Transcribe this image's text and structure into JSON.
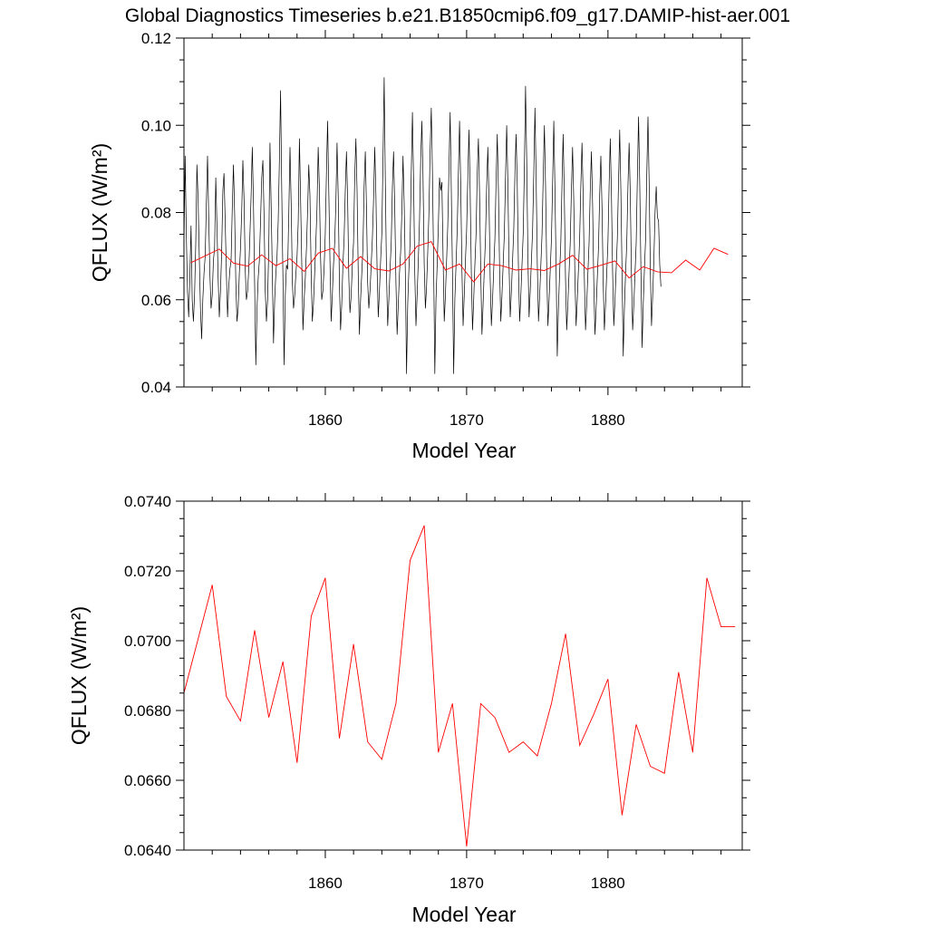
{
  "title": "Global Diagnostics Timeseries b.e21.B1850cmip6.f09_g17.DAMIP-hist-aer.001",
  "colors": {
    "monthly_series": "#000000",
    "annual_series": "#ff0000"
  },
  "chart_data": [
    {
      "type": "line",
      "xlabel": "Model Year",
      "ylabel": "QFLUX (W/m²)",
      "xlim": [
        1850.0,
        1889.5
      ],
      "ylim": [
        0.04,
        0.12
      ],
      "xticks": [
        1860,
        1870,
        1880
      ],
      "xtick_labels": [
        "1860",
        "1870",
        "1880"
      ],
      "yticks": [
        0.04,
        0.06,
        0.08,
        0.1,
        0.12
      ],
      "ytick_labels": [
        "0.04",
        "0.06",
        "0.08",
        "0.10",
        "0.12"
      ],
      "grid": false,
      "series": [
        {
          "style": "monthly",
          "color": "#000000",
          "x_start": 1850.0,
          "x_step": 0.08333,
          "values": [
            0.072,
            0.093,
            0.075,
            0.062,
            0.056,
            0.065,
            0.077,
            0.06,
            0.055,
            0.061,
            0.073,
            0.091,
            0.083,
            0.07,
            0.058,
            0.051,
            0.06,
            0.066,
            0.07,
            0.082,
            0.093,
            0.079,
            0.066,
            0.058,
            0.061,
            0.069,
            0.072,
            0.088,
            0.077,
            0.065,
            0.056,
            0.062,
            0.071,
            0.085,
            0.089,
            0.078,
            0.066,
            0.056,
            0.063,
            0.067,
            0.069,
            0.081,
            0.091,
            0.08,
            0.064,
            0.055,
            0.058,
            0.066,
            0.072,
            0.08,
            0.092,
            0.083,
            0.067,
            0.06,
            0.062,
            0.067,
            0.075,
            0.084,
            0.095,
            0.082,
            0.063,
            0.045,
            0.058,
            0.065,
            0.069,
            0.078,
            0.088,
            0.092,
            0.079,
            0.062,
            0.055,
            0.06,
            0.072,
            0.096,
            0.082,
            0.066,
            0.05,
            0.06,
            0.066,
            0.07,
            0.078,
            0.092,
            0.108,
            0.085,
            0.065,
            0.045,
            0.061,
            0.068,
            0.067,
            0.08,
            0.095,
            0.082,
            0.064,
            0.058,
            0.061,
            0.066,
            0.07,
            0.078,
            0.097,
            0.083,
            0.068,
            0.053,
            0.06,
            0.065,
            0.072,
            0.081,
            0.091,
            0.084,
            0.067,
            0.055,
            0.059,
            0.066,
            0.073,
            0.081,
            0.095,
            0.086,
            0.07,
            0.06,
            0.062,
            0.067,
            0.075,
            0.089,
            0.101,
            0.085,
            0.069,
            0.055,
            0.061,
            0.068,
            0.073,
            0.082,
            0.096,
            0.084,
            0.064,
            0.053,
            0.059,
            0.068,
            0.074,
            0.085,
            0.094,
            0.083,
            0.065,
            0.057,
            0.061,
            0.068,
            0.073,
            0.088,
            0.097,
            0.085,
            0.066,
            0.052,
            0.06,
            0.066,
            0.072,
            0.086,
            0.094,
            0.081,
            0.064,
            0.058,
            0.062,
            0.068,
            0.074,
            0.083,
            0.095,
            0.084,
            0.067,
            0.056,
            0.062,
            0.069,
            0.075,
            0.092,
            0.111,
            0.087,
            0.066,
            0.054,
            0.06,
            0.067,
            0.073,
            0.086,
            0.094,
            0.081,
            0.064,
            0.052,
            0.059,
            0.066,
            0.071,
            0.08,
            0.093,
            0.082,
            0.066,
            0.043,
            0.059,
            0.067,
            0.073,
            0.089,
            0.103,
            0.087,
            0.066,
            0.054,
            0.061,
            0.069,
            0.078,
            0.092,
            0.101,
            0.088,
            0.068,
            0.058,
            0.063,
            0.071,
            0.08,
            0.094,
            0.104,
            0.089,
            0.068,
            0.043,
            0.06,
            0.068,
            0.077,
            0.088,
            0.085,
            0.087,
            0.07,
            0.055,
            0.061,
            0.069,
            0.077,
            0.09,
            0.103,
            0.085,
            0.066,
            0.043,
            0.06,
            0.068,
            0.076,
            0.089,
            0.101,
            0.086,
            0.067,
            0.054,
            0.061,
            0.069,
            0.076,
            0.088,
            0.099,
            0.085,
            0.066,
            0.053,
            0.06,
            0.068,
            0.075,
            0.089,
            0.097,
            0.084,
            0.066,
            0.052,
            0.059,
            0.067,
            0.074,
            0.086,
            0.095,
            0.083,
            0.065,
            0.054,
            0.06,
            0.067,
            0.074,
            0.087,
            0.098,
            0.085,
            0.067,
            0.055,
            0.061,
            0.068,
            0.075,
            0.088,
            0.1,
            0.087,
            0.068,
            0.056,
            0.062,
            0.069,
            0.076,
            0.089,
            0.098,
            0.086,
            0.067,
            0.055,
            0.061,
            0.068,
            0.075,
            0.09,
            0.109,
            0.092,
            0.07,
            0.056,
            0.062,
            0.069,
            0.076,
            0.089,
            0.104,
            0.088,
            0.068,
            0.055,
            0.061,
            0.068,
            0.075,
            0.088,
            0.1,
            0.086,
            0.067,
            0.054,
            0.06,
            0.067,
            0.074,
            0.087,
            0.101,
            0.085,
            0.066,
            0.047,
            0.058,
            0.066,
            0.073,
            0.086,
            0.098,
            0.084,
            0.065,
            0.053,
            0.059,
            0.066,
            0.073,
            0.085,
            0.095,
            0.083,
            0.065,
            0.054,
            0.06,
            0.067,
            0.074,
            0.086,
            0.096,
            0.084,
            0.065,
            0.053,
            0.059,
            0.066,
            0.073,
            0.085,
            0.094,
            0.082,
            0.064,
            0.052,
            0.058,
            0.065,
            0.072,
            0.084,
            0.093,
            0.081,
            0.064,
            0.053,
            0.059,
            0.066,
            0.073,
            0.086,
            0.097,
            0.084,
            0.066,
            0.054,
            0.06,
            0.067,
            0.074,
            0.087,
            0.099,
            0.085,
            0.066,
            0.047,
            0.058,
            0.066,
            0.073,
            0.086,
            0.096,
            0.084,
            0.065,
            0.053,
            0.059,
            0.066,
            0.073,
            0.088,
            0.102,
            0.087,
            0.067,
            0.049,
            0.059,
            0.067,
            0.074,
            0.089,
            0.102,
            0.087,
            0.067,
            0.054,
            0.061,
            0.069,
            0.08,
            0.086,
            0.079,
            0.078,
            0.068,
            0.063
          ]
        },
        {
          "style": "annual",
          "color": "#ff0000",
          "x": [
            1850.5,
            1852.5,
            1853.5,
            1854.5,
            1855.5,
            1856.5,
            1857.5,
            1858.5,
            1859.5,
            1860.5,
            1861.5,
            1862.5,
            1863.5,
            1864.5,
            1865.5,
            1866.5,
            1867.5,
            1868.5,
            1869.5,
            1870.5,
            1871.5,
            1872.5,
            1873.5,
            1874.5,
            1875.5,
            1876.5,
            1877.5,
            1878.5,
            1879.5,
            1880.5,
            1881.5,
            1882.5,
            1883.5,
            1884.5,
            1885.5,
            1886.5,
            1887.5,
            1888.5
          ],
          "values": [
            0.0685,
            0.0716,
            0.0684,
            0.0677,
            0.0703,
            0.0678,
            0.0694,
            0.0665,
            0.0707,
            0.0718,
            0.0672,
            0.0699,
            0.0671,
            0.0666,
            0.0682,
            0.0723,
            0.0733,
            0.0668,
            0.0682,
            0.0641,
            0.0682,
            0.0678,
            0.0668,
            0.0671,
            0.0667,
            0.0682,
            0.0702,
            0.067,
            0.0679,
            0.0689,
            0.065,
            0.0676,
            0.0664,
            0.0662,
            0.0691,
            0.0668,
            0.0718,
            0.0704
          ]
        }
      ]
    },
    {
      "type": "line",
      "xlabel": "Model Year",
      "ylabel": "QFLUX (W/m²)",
      "xlim": [
        1850.0,
        1889.5
      ],
      "ylim": [
        0.064,
        0.074
      ],
      "xticks": [
        1860,
        1870,
        1880
      ],
      "xtick_labels": [
        "1860",
        "1870",
        "1880"
      ],
      "yticks": [
        0.064,
        0.066,
        0.068,
        0.07,
        0.072,
        0.074
      ],
      "ytick_labels": [
        "0.0640",
        "0.0660",
        "0.0680",
        "0.0700",
        "0.0720",
        "0.0740"
      ],
      "grid": false,
      "series": [
        {
          "style": "annual",
          "color": "#ff0000",
          "x": [
            1850.0,
            1852.0,
            1853.0,
            1854.0,
            1855.0,
            1856.0,
            1857.0,
            1858.0,
            1859.0,
            1860.0,
            1861.0,
            1862.0,
            1863.0,
            1864.0,
            1865.0,
            1866.0,
            1867.0,
            1868.0,
            1869.0,
            1870.0,
            1871.0,
            1872.0,
            1873.0,
            1874.0,
            1875.0,
            1876.0,
            1877.0,
            1878.0,
            1879.0,
            1880.0,
            1881.0,
            1882.0,
            1883.0,
            1884.0,
            1885.0,
            1886.0,
            1887.0,
            1888.0,
            1889.0
          ],
          "values": [
            0.0685,
            0.0716,
            0.0684,
            0.0677,
            0.0703,
            0.0678,
            0.0694,
            0.0665,
            0.0707,
            0.0718,
            0.0672,
            0.0699,
            0.0671,
            0.0666,
            0.0682,
            0.0723,
            0.0733,
            0.0668,
            0.0682,
            0.0641,
            0.0682,
            0.0678,
            0.0668,
            0.0671,
            0.0667,
            0.0682,
            0.0702,
            0.067,
            0.0679,
            0.0689,
            0.065,
            0.0676,
            0.0664,
            0.0662,
            0.0691,
            0.0668,
            0.0718,
            0.0704,
            0.0704
          ]
        }
      ]
    }
  ]
}
